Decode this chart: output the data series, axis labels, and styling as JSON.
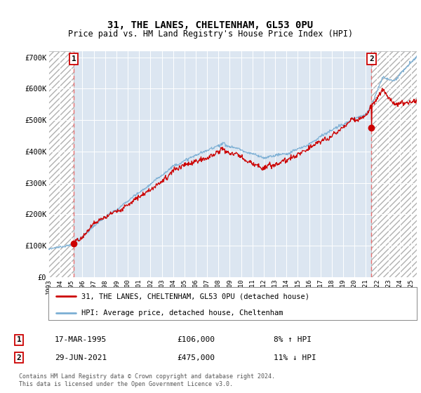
{
  "title": "31, THE LANES, CHELTENHAM, GL53 0PU",
  "subtitle": "Price paid vs. HM Land Registry's House Price Index (HPI)",
  "sale1_price": 106000,
  "sale1_year": 1995.25,
  "sale2_price": 475000,
  "sale2_year": 2021.5,
  "hpi_line_color": "#7bafd4",
  "price_line_color": "#cc0000",
  "sale_marker_color": "#cc0000",
  "dashed_line_color": "#e87070",
  "legend_line1": "31, THE LANES, CHELTENHAM, GL53 0PU (detached house)",
  "legend_line2": "HPI: Average price, detached house, Cheltenham",
  "footer": "Contains HM Land Registry data © Crown copyright and database right 2024.\nThis data is licensed under the Open Government Licence v3.0.",
  "table_row1": [
    "1",
    "17-MAR-1995",
    "£106,000",
    "8% ↑ HPI"
  ],
  "table_row2": [
    "2",
    "29-JUN-2021",
    "£475,000",
    "11% ↓ HPI"
  ],
  "ylim": [
    0,
    720000
  ],
  "yticks": [
    0,
    100000,
    200000,
    300000,
    400000,
    500000,
    600000,
    700000
  ],
  "ytick_labels": [
    "£0",
    "£100K",
    "£200K",
    "£300K",
    "£400K",
    "£500K",
    "£600K",
    "£700K"
  ],
  "xstart_year": 1993,
  "xend_year": 2025,
  "background_color": "#ffffff",
  "plot_bg_color": "#dce6f1"
}
